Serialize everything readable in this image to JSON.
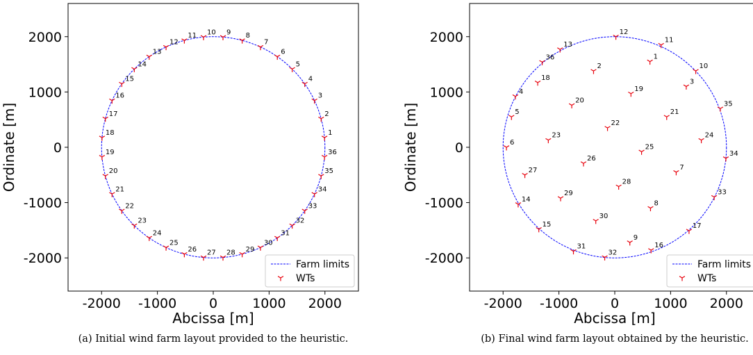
{
  "chart_data": [
    {
      "type": "scatter",
      "xlabel": "Abcissa [m]",
      "ylabel": "Ordinate [m]",
      "xlim": [
        -2600,
        2600
      ],
      "ylim": [
        -2600,
        2600
      ],
      "xticks": [
        -2000,
        -1000,
        0,
        1000,
        2000
      ],
      "yticks": [
        -2000,
        -1000,
        0,
        1000,
        2000
      ],
      "xtick_labels": [
        "-2000",
        "-1000",
        "0",
        "1000",
        "2000"
      ],
      "ytick_labels": [
        "-2000",
        "-1000",
        "0",
        "1000",
        "2000"
      ],
      "farm_radius": 2000,
      "legend": {
        "placement": "lower-right",
        "entries": [
          "Farm limits",
          "WTs"
        ]
      },
      "caption": "(a) Initial wind farm layout provided to the heuristic.",
      "series": [
        {
          "name": "WTs",
          "layout": "circle",
          "count": 36,
          "radius": 2000,
          "labels": [
            "1",
            "2",
            "3",
            "4",
            "5",
            "6",
            "7",
            "8",
            "9",
            "10",
            "11",
            "12",
            "13",
            "14",
            "15",
            "16",
            "17",
            "18",
            "19",
            "20",
            "21",
            "22",
            "23",
            "24",
            "25",
            "26",
            "27",
            "28",
            "29",
            "30",
            "31",
            "32",
            "33",
            "34",
            "35",
            "36"
          ]
        }
      ]
    },
    {
      "type": "scatter",
      "xlabel": "Abcissa [m]",
      "ylabel": "Ordinate [m]",
      "xlim": [
        -2600,
        2600
      ],
      "ylim": [
        -2600,
        2600
      ],
      "xticks": [
        -2000,
        -1000,
        0,
        1000,
        2000
      ],
      "yticks": [
        -2000,
        -1000,
        0,
        1000,
        2000
      ],
      "xtick_labels": [
        "-2000",
        "-1000",
        "0",
        "1000",
        "2000"
      ],
      "ytick_labels": [
        "-2000",
        "-1000",
        "0",
        "1000",
        "2000"
      ],
      "farm_radius": 2000,
      "legend": {
        "placement": "lower-right",
        "entries": [
          "Farm limits",
          "WTs"
        ]
      },
      "caption": "(b) Final wind farm layout obtained by the heuristic.",
      "series": [
        {
          "name": "WTs",
          "points": [
            {
              "label": "1",
              "x": 630,
              "y": 1550
            },
            {
              "label": "2",
              "x": -380,
              "y": 1380
            },
            {
              "label": "3",
              "x": 1280,
              "y": 1100
            },
            {
              "label": "4",
              "x": -1780,
              "y": 920
            },
            {
              "label": "5",
              "x": -1850,
              "y": 550
            },
            {
              "label": "6",
              "x": -1940,
              "y": 0
            },
            {
              "label": "7",
              "x": 1100,
              "y": -450
            },
            {
              "label": "8",
              "x": 640,
              "y": -1100
            },
            {
              "label": "9",
              "x": 270,
              "y": -1720
            },
            {
              "label": "10",
              "x": 1450,
              "y": 1380
            },
            {
              "label": "11",
              "x": 830,
              "y": 1850
            },
            {
              "label": "12",
              "x": 20,
              "y": 2000
            },
            {
              "label": "13",
              "x": -980,
              "y": 1770
            },
            {
              "label": "14",
              "x": -1730,
              "y": -1030
            },
            {
              "label": "15",
              "x": -1360,
              "y": -1480
            },
            {
              "label": "16",
              "x": 650,
              "y": -1860
            },
            {
              "label": "17",
              "x": 1330,
              "y": -1510
            },
            {
              "label": "18",
              "x": -1380,
              "y": 1170
            },
            {
              "label": "19",
              "x": 290,
              "y": 970
            },
            {
              "label": "20",
              "x": -770,
              "y": 760
            },
            {
              "label": "21",
              "x": 930,
              "y": 550
            },
            {
              "label": "22",
              "x": -130,
              "y": 350
            },
            {
              "label": "23",
              "x": -1190,
              "y": 130
            },
            {
              "label": "24",
              "x": 1550,
              "y": 130
            },
            {
              "label": "25",
              "x": 480,
              "y": -80
            },
            {
              "label": "26",
              "x": -560,
              "y": -290
            },
            {
              "label": "27",
              "x": -1610,
              "y": -500
            },
            {
              "label": "28",
              "x": 70,
              "y": -710
            },
            {
              "label": "29",
              "x": -970,
              "y": -920
            },
            {
              "label": "30",
              "x": -340,
              "y": -1330
            },
            {
              "label": "31",
              "x": -740,
              "y": -1880
            },
            {
              "label": "32",
              "x": -180,
              "y": -1990
            },
            {
              "label": "33",
              "x": 1780,
              "y": -900
            },
            {
              "label": "34",
              "x": 1990,
              "y": -200
            },
            {
              "label": "35",
              "x": 1890,
              "y": 700
            },
            {
              "label": "36",
              "x": -1300,
              "y": 1540
            }
          ]
        }
      ]
    }
  ],
  "colors": {
    "farm_limits": "#0000ff",
    "wts": "#e8000b"
  }
}
